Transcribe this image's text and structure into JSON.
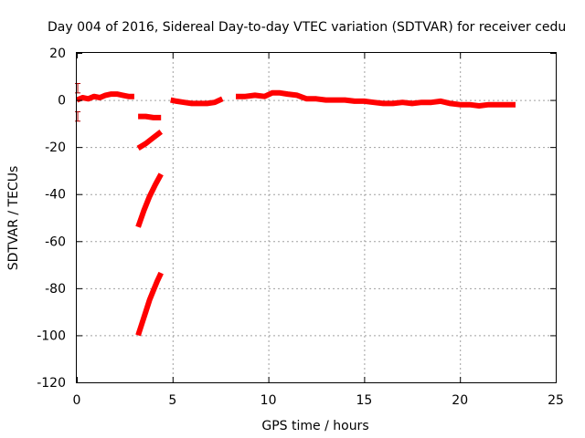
{
  "chart_data": {
    "type": "line",
    "title": "Day 004 of 2016, Sidereal Day-to-day VTEC variation (SDTVAR) for receiver cedu",
    "xlabel": "GPS time / hours",
    "ylabel": "SDTVAR / TECUs",
    "xlim": [
      0,
      25
    ],
    "ylim": [
      -120,
      20
    ],
    "grid": true,
    "x_ticks": [
      0,
      5,
      10,
      15,
      20,
      25
    ],
    "y_ticks": [
      -120,
      -100,
      -80,
      -60,
      -40,
      -20,
      0,
      20
    ],
    "series_color": "#ff0000",
    "error_bars": [
      {
        "x": 0.05,
        "y": 5,
        "low": 3,
        "high": 7
      },
      {
        "x": 0.05,
        "y": -7,
        "low": -9,
        "high": -5
      }
    ],
    "series": [
      {
        "x": [
          0.0,
          0.3,
          0.6,
          0.9,
          1.2,
          1.5,
          1.8,
          2.1,
          2.4,
          2.7,
          3.0
        ],
        "y": [
          0.0,
          1.0,
          0.5,
          1.5,
          1.0,
          2.0,
          2.5,
          2.5,
          2.0,
          1.5,
          1.5
        ]
      },
      {
        "x": [
          3.2,
          3.6,
          4.0,
          4.4
        ],
        "y": [
          -7.0,
          -7.0,
          -7.5,
          -7.5
        ]
      },
      {
        "x": [
          3.2,
          3.6,
          4.0,
          4.4
        ],
        "y": [
          -20.5,
          -18.5,
          -16.0,
          -13.5
        ]
      },
      {
        "x": [
          3.2,
          3.5,
          3.8,
          4.1,
          4.4
        ],
        "y": [
          -54.0,
          -47.0,
          -41.0,
          -36.0,
          -31.5
        ]
      },
      {
        "x": [
          3.2,
          3.4,
          3.6,
          3.8,
          4.0,
          4.2,
          4.4
        ],
        "y": [
          -100.0,
          -95.0,
          -90.0,
          -85.0,
          -81.0,
          -77.0,
          -73.5
        ]
      },
      {
        "x": [
          4.9,
          5.2,
          5.6,
          6.0,
          6.4,
          6.8,
          7.2,
          7.6
        ],
        "y": [
          0.0,
          -0.5,
          -1.0,
          -1.5,
          -1.5,
          -1.5,
          -1.0,
          0.5
        ]
      },
      {
        "x": [
          8.3,
          8.8,
          9.3,
          9.8,
          10.2,
          10.6,
          11.0,
          11.5,
          12.0,
          12.5,
          13.0,
          13.5,
          14.0,
          14.5,
          15.0,
          15.5,
          16.0,
          16.5,
          17.0,
          17.5,
          18.0,
          18.5,
          19.0,
          19.5,
          20.0,
          20.5,
          21.0,
          21.5,
          22.0,
          22.5,
          22.9
        ],
        "y": [
          1.5,
          1.5,
          2.0,
          1.5,
          3.0,
          3.0,
          2.5,
          2.0,
          0.5,
          0.5,
          0.0,
          0.0,
          0.0,
          -0.5,
          -0.5,
          -1.0,
          -1.5,
          -1.5,
          -1.0,
          -1.5,
          -1.0,
          -1.0,
          -0.5,
          -1.5,
          -2.0,
          -2.0,
          -2.5,
          -2.0,
          -2.0,
          -2.0,
          -2.0
        ]
      }
    ]
  }
}
